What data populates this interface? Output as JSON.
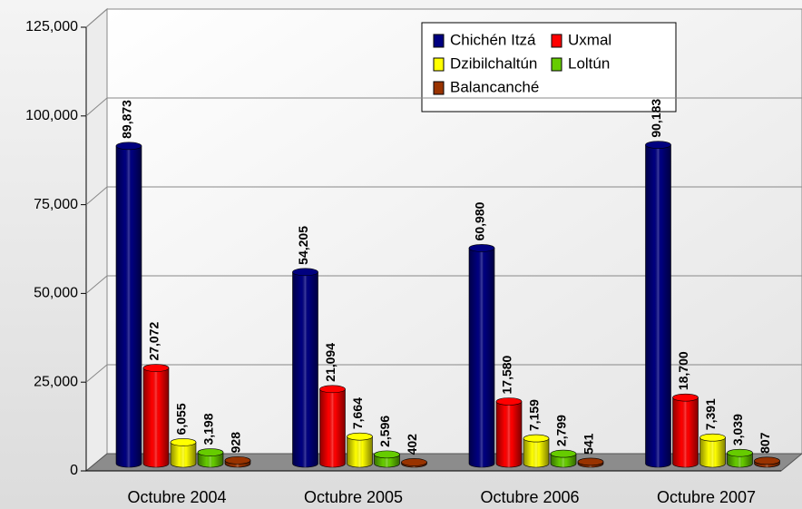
{
  "chart_data": {
    "type": "bar",
    "categories": [
      "Octubre 2004",
      "Octubre 2005",
      "Octubre 2006",
      "Octubre 2007"
    ],
    "series": [
      {
        "name": "Chichén Itzá",
        "color": "#000080",
        "values": [
          89873,
          54205,
          60980,
          90183
        ],
        "value_labels": [
          "89,873",
          "54,205",
          "60,980",
          "90,183"
        ]
      },
      {
        "name": "Uxmal",
        "color": "#ff0000",
        "values": [
          27072,
          21094,
          17580,
          18700
        ],
        "value_labels": [
          "27,072",
          "21,094",
          "17,580",
          "18,700"
        ]
      },
      {
        "name": "Dzibilchaltún",
        "color": "#ffff00",
        "values": [
          6055,
          7664,
          7159,
          7391
        ],
        "value_labels": [
          "6,055",
          "7,664",
          "7,159",
          "7,391"
        ]
      },
      {
        "name": "Loltún",
        "color": "#66cc00",
        "values": [
          3198,
          2596,
          2799,
          3039
        ],
        "value_labels": [
          "3,198",
          "2,596",
          "2,799",
          "3,039"
        ]
      },
      {
        "name": "Balancanché",
        "color": "#993300",
        "values": [
          928,
          402,
          541,
          807
        ],
        "value_labels": [
          "928",
          "402",
          "541",
          "807"
        ]
      }
    ],
    "ylim": [
      0,
      125000
    ],
    "yticks": [
      0,
      {
        "value": 25000,
        "label": "25,000"
      },
      {
        "value": 50000,
        "label": "50,000"
      },
      {
        "value": 75000,
        "label": "75,000"
      },
      {
        "value": 100000,
        "label": "100,000"
      },
      {
        "value": 125000,
        "label": "125,000"
      }
    ],
    "grid": true
  }
}
